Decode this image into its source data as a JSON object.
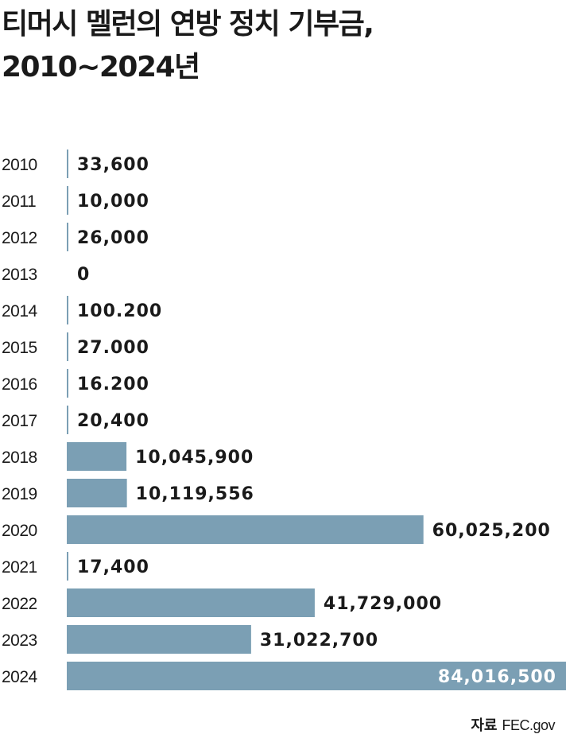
{
  "title_line1": "티머시 멜런의 연방 정치 기부금,",
  "title_line2": "2010~2024년",
  "source_label": "자료",
  "source_value": "FEC.gov",
  "bar_color": "#7b9fb4",
  "chart_data": {
    "type": "bar",
    "orientation": "horizontal",
    "title": "티머시 멜런의 연방 정치 기부금, 2010~2024년",
    "categories": [
      "2010",
      "2011",
      "2012",
      "2013",
      "2014",
      "2015",
      "2016",
      "2017",
      "2018",
      "2019",
      "2020",
      "2021",
      "2022",
      "2023",
      "2024"
    ],
    "values": [
      33600,
      10000,
      26000,
      0,
      100200,
      27000,
      16200,
      20400,
      10045900,
      10119556,
      60025200,
      17400,
      41729000,
      31022700,
      84016500
    ],
    "value_labels": [
      "33,600",
      "10,000",
      "26,000",
      "0",
      "100.200",
      "27.000",
      "16.200",
      "20,400",
      "10,045,900",
      "10,119,556",
      "60,025,200",
      "17,400",
      "41,729,000",
      "31,022,700",
      "84,016,500"
    ],
    "xlim": [
      0,
      84016500
    ],
    "grid": false,
    "legend": "none"
  }
}
